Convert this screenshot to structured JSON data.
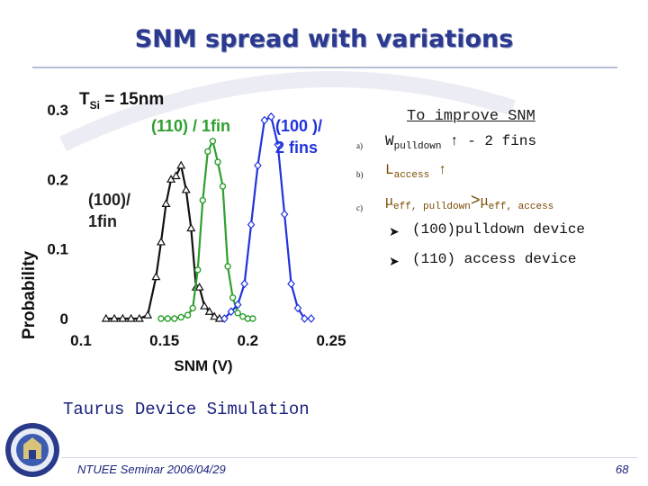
{
  "slide": {
    "title": "SNM spread with variations",
    "improve_heading": "To improve SNM",
    "items": [
      {
        "marker": "a)",
        "main": "W",
        "sub": "pulldown",
        "suffix": " ↑ - 2 fins"
      },
      {
        "marker": "b)",
        "main": "L",
        "sub": "access",
        "suffix": " ↑"
      },
      {
        "marker": "c)",
        "part1": "μ",
        "sub1": "eff, pulldown",
        "op": ">",
        "part2": "μ",
        "sub2": "eff, access"
      }
    ],
    "bullets": [
      "(100)pulldown device",
      "(110) access device"
    ],
    "bullet_icon": "arrow-bullet-icon",
    "simulation_note": "Taurus Device Simulation",
    "footer": "NTUEE Seminar 2006/04/29",
    "page_number": "68",
    "seal_icon": "university-seal-icon",
    "colors": {
      "title": "#2b3a8f",
      "footer": "#1a237e"
    }
  },
  "chart_data": {
    "type": "line",
    "title": "T_Si = 15nm",
    "title_main": "T",
    "title_sub": "Si",
    "title_rest": " = 15nm",
    "xlabel": "SNM (V)",
    "ylabel": "Probability",
    "xlim": [
      0.1,
      0.25
    ],
    "ylim": [
      0,
      0.3
    ],
    "xticks": [
      "0.1",
      "0.15",
      "0.2",
      "0.25"
    ],
    "xtick_values": [
      0.1,
      0.15,
      0.2,
      0.25
    ],
    "yticks": [
      "0",
      "0.1",
      "0.2",
      "0.3"
    ],
    "ytick_values": [
      0,
      0.1,
      0.2,
      0.3
    ],
    "grid": false,
    "series": [
      {
        "name": "(100)/ 1fin",
        "label_lines": [
          "(100)/",
          "1fin"
        ],
        "color": "#111111",
        "marker": "triangle",
        "x": [
          0.115,
          0.12,
          0.125,
          0.13,
          0.135,
          0.14,
          0.145,
          0.148,
          0.151,
          0.154,
          0.157,
          0.16,
          0.163,
          0.166,
          0.169,
          0.171,
          0.174,
          0.177,
          0.18,
          0.183
        ],
        "y": [
          0,
          0,
          0,
          0,
          0,
          0.005,
          0.06,
          0.11,
          0.165,
          0.2,
          0.205,
          0.22,
          0.185,
          0.13,
          0.045,
          0.045,
          0.018,
          0.01,
          0.003,
          0
        ]
      },
      {
        "name": "(110) / 1fin",
        "label_lines": [
          "(110) / 1fin"
        ],
        "color": "#2ea02e",
        "marker": "circle",
        "x": [
          0.148,
          0.152,
          0.156,
          0.16,
          0.164,
          0.167,
          0.17,
          0.173,
          0.176,
          0.179,
          0.182,
          0.185,
          0.188,
          0.191,
          0.194,
          0.197,
          0.2,
          0.203
        ],
        "y": [
          0,
          0,
          0,
          0.002,
          0.005,
          0.015,
          0.07,
          0.17,
          0.24,
          0.255,
          0.225,
          0.19,
          0.075,
          0.03,
          0.008,
          0.003,
          0,
          0
        ]
      },
      {
        "name": "(100 )/ 2 fins",
        "label_lines": [
          "(100 )/",
          "2 fins"
        ],
        "color": "#2233dd",
        "marker": "diamond",
        "x": [
          0.186,
          0.19,
          0.194,
          0.198,
          0.202,
          0.206,
          0.21,
          0.214,
          0.218,
          0.222,
          0.226,
          0.23,
          0.234,
          0.238
        ],
        "y": [
          0,
          0.01,
          0.02,
          0.05,
          0.135,
          0.22,
          0.285,
          0.29,
          0.25,
          0.15,
          0.05,
          0.015,
          0,
          0
        ]
      }
    ]
  }
}
